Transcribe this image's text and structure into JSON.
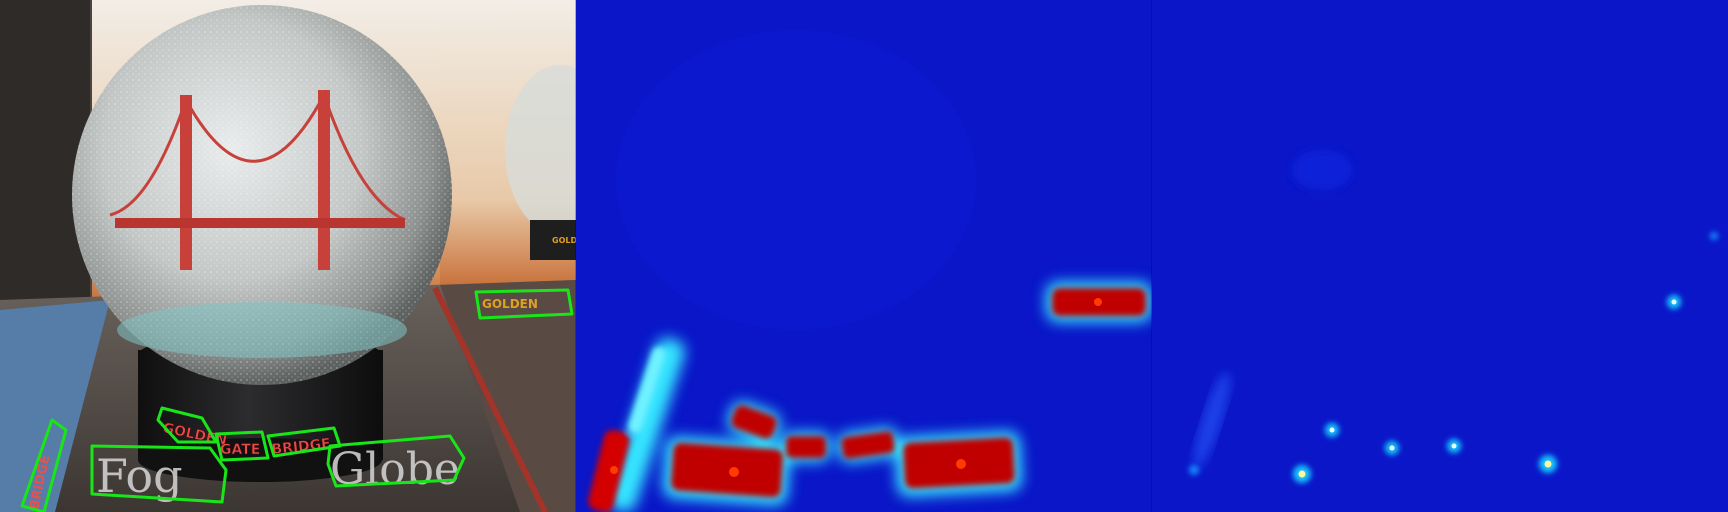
{
  "panels": [
    {
      "id": "photo",
      "texts": {
        "golden": "GOLDEN",
        "gate": "GATE",
        "bridge": "BRIDGE",
        "fog": "Fog",
        "globe": "Globe",
        "box_golden": "GOLDEN",
        "book_bridge": "BRIDGE",
        "box_small": "GOLD"
      }
    },
    {
      "id": "region-heatmap"
    },
    {
      "id": "center-heatmap"
    }
  ],
  "colors": {
    "detection_outline": "#19e619",
    "heatmap_background": "#0a16c8",
    "heatmap_hot": "#b30000"
  }
}
